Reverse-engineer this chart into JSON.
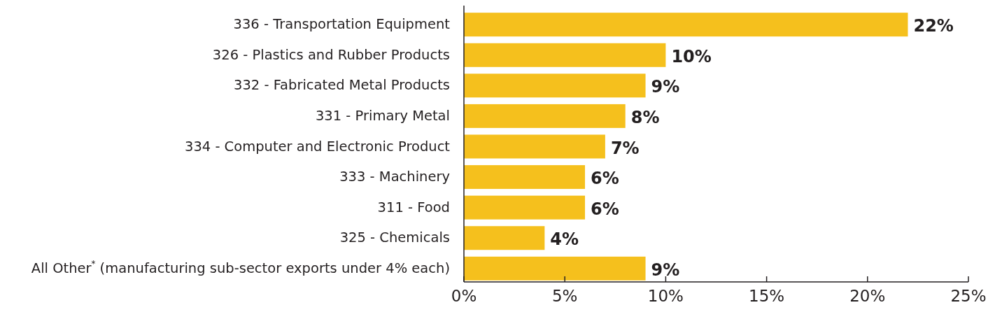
{
  "chart_data": {
    "type": "bar",
    "orientation": "horizontal",
    "categories": [
      "336 - Transportation Equipment",
      "326 - Plastics and Rubber Products",
      "332 - Fabricated Metal Products",
      "331 - Primary Metal",
      "334 - Computer and Electronic Product",
      "333 - Machinery",
      "311 - Food",
      "325 - Chemicals",
      "All Other$^{*}$ (manufacturing sub-sector exports under 4% each)"
    ],
    "values": [
      22,
      10,
      9,
      8,
      7,
      6,
      6,
      4,
      9
    ],
    "value_labels": [
      "22%",
      "10%",
      "9%",
      "8%",
      "7%",
      "6%",
      "6%",
      "4%",
      "9%"
    ],
    "color": "#f5c01d",
    "xlim": [
      0,
      25
    ],
    "xticks": [
      {
        "value": 0,
        "label": "0%"
      },
      {
        "value": 5,
        "label": "5%"
      },
      {
        "value": 10,
        "label": "10%"
      },
      {
        "value": 15,
        "label": "15%"
      },
      {
        "value": 20,
        "label": "20%"
      },
      {
        "value": 25,
        "label": "25%"
      }
    ],
    "grid": false
  }
}
